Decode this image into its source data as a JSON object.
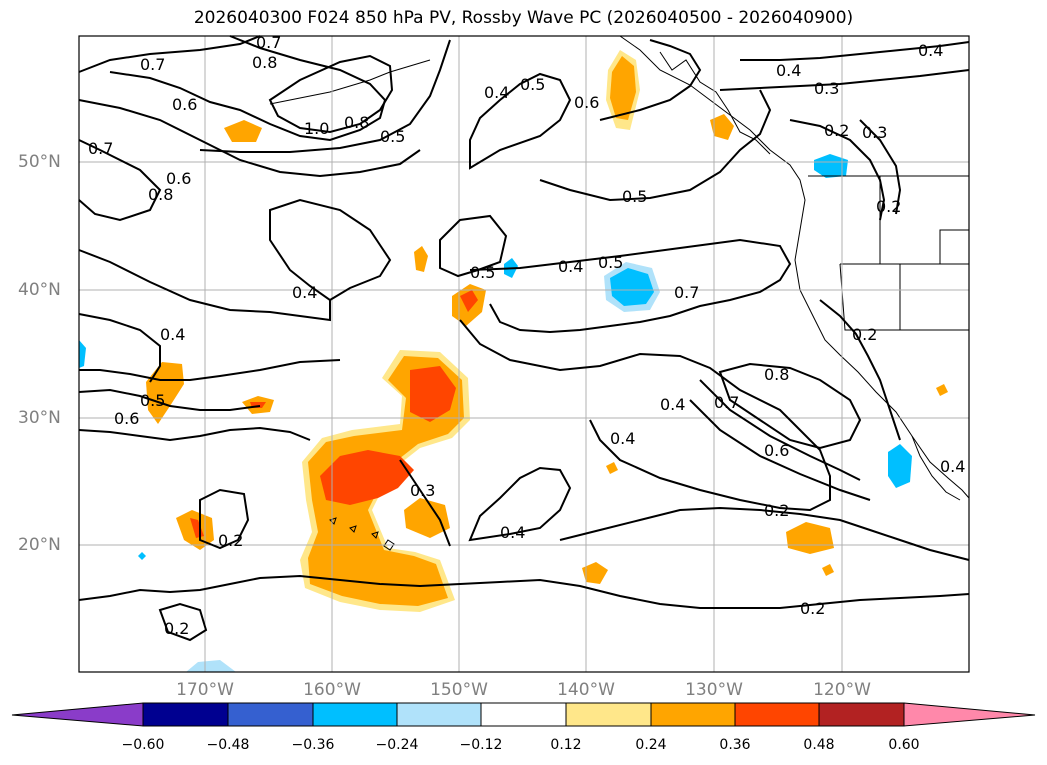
{
  "title": "2026040300 F024 850 hPa PV, Rossby Wave PC (2026040500 - 2026040900)",
  "lat_labels": [
    "50°N",
    "40°N",
    "30°N",
    "20°N"
  ],
  "lon_labels": [
    "170°W",
    "160°W",
    "150°W",
    "140°W",
    "130°W",
    "120°W"
  ],
  "colorbar": {
    "tick_labels": [
      "−0.60",
      "−0.48",
      "−0.36",
      "−0.24",
      "−0.12",
      "0.12",
      "0.24",
      "0.36",
      "0.48",
      "0.60"
    ],
    "colors": [
      "#8a3cc9",
      "#000090",
      "#3560d0",
      "#00bfff",
      "#b0e2fa",
      "#ffffff",
      "#ffe78a",
      "#ffa500",
      "#ff4500",
      "#b22222",
      "#ff88aa"
    ]
  },
  "contour_labels": [
    {
      "text": "0.7"
    },
    {
      "text": "0.8"
    },
    {
      "text": "0.7"
    },
    {
      "text": "0.6"
    },
    {
      "text": "0.7"
    },
    {
      "text": "0.8"
    },
    {
      "text": "0.6"
    },
    {
      "text": "1.0"
    },
    {
      "text": "0.8"
    },
    {
      "text": "0.5"
    },
    {
      "text": "0.4"
    },
    {
      "text": "0.5"
    },
    {
      "text": "0.6"
    },
    {
      "text": "0.4"
    },
    {
      "text": "0.3"
    },
    {
      "text": "0.2"
    },
    {
      "text": "0.3"
    },
    {
      "text": "0.2"
    },
    {
      "text": "0.5"
    },
    {
      "text": "0.5"
    },
    {
      "text": "0.4"
    },
    {
      "text": "0.5"
    },
    {
      "text": "0.7"
    },
    {
      "text": "0.4"
    },
    {
      "text": "0.4"
    },
    {
      "text": "0.2"
    },
    {
      "text": "0.8"
    },
    {
      "text": "0.6"
    },
    {
      "text": "0.5"
    },
    {
      "text": "0.7"
    },
    {
      "text": "0.4"
    },
    {
      "text": "0.4"
    },
    {
      "text": "0.6"
    },
    {
      "text": "0.3"
    },
    {
      "text": "0.2"
    },
    {
      "text": "0.4"
    },
    {
      "text": "0.2"
    },
    {
      "text": "0.2"
    },
    {
      "text": "0.2"
    },
    {
      "text": "0.4"
    },
    {
      "text": "0.4"
    }
  ]
}
